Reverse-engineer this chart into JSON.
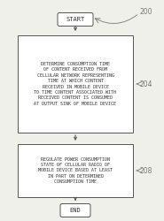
{
  "bg_color": "#f0f0eb",
  "box_color": "#ffffff",
  "box_edge_color": "#555555",
  "arrow_color": "#555555",
  "text_color": "#333333",
  "label_color": "#777777",
  "start_label": "START",
  "end_label": "END",
  "box1_text": "DETERMINE CONSUMPTION TIME\nOF CONTENT RECEIVED FROM\nCELLULAR NETWORK REPRESENTING\nTIME AT WHICH CONTENT\nRECEIVED IN MOBILE DEVICE\nTO TIME CONTENT ASSOCIATED WITH\nRECEIVED CONTENT IS CONSUMED\nAT OUTPUT SINK OF MOBILE DEVICE",
  "box2_text": "REGULATE POWER CONSUMPTION\nSTATE OF CELLULAR RADIO OF\nMOBILE DEVICE BASED AT LEAST\nIN PART ON DETERMINED\nCONSUMPTION TIME",
  "label_200": "200",
  "label_204": "204",
  "label_208": "208",
  "figw": 1.85,
  "figh": 2.5,
  "dpi": 100
}
